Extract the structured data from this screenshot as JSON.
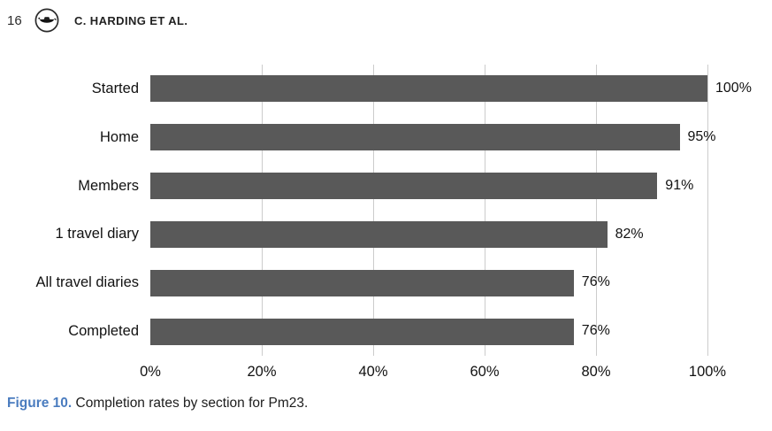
{
  "page": {
    "number": "16",
    "running_head": "C. HARDING ET AL.",
    "publisher_logo": "taylor-francis-lamp"
  },
  "figure": {
    "caption_label": "Figure 10.",
    "caption_text": "Completion rates by section for Pm23."
  },
  "chart_data": {
    "type": "bar",
    "orientation": "horizontal",
    "title": "",
    "xlabel": "",
    "ylabel": "",
    "categories": [
      "Started",
      "Home",
      "Members",
      "1 travel diary",
      "All travel diaries",
      "Completed"
    ],
    "values": [
      100,
      95,
      91,
      82,
      76,
      76
    ],
    "value_labels": [
      "100%",
      "95%",
      "91%",
      "82%",
      "76%",
      "76%"
    ],
    "x_ticks": [
      "0%",
      "20%",
      "40%",
      "60%",
      "80%",
      "100%"
    ],
    "x_tick_values": [
      0,
      20,
      40,
      60,
      80,
      100
    ],
    "xlim": [
      0,
      100
    ],
    "grid": true,
    "legend_position": "none",
    "bar_color": "#595959",
    "gridline_color": "#cccccc"
  },
  "colors": {
    "caption_accent": "#4a7cbf",
    "text": "#1a1a1a"
  }
}
